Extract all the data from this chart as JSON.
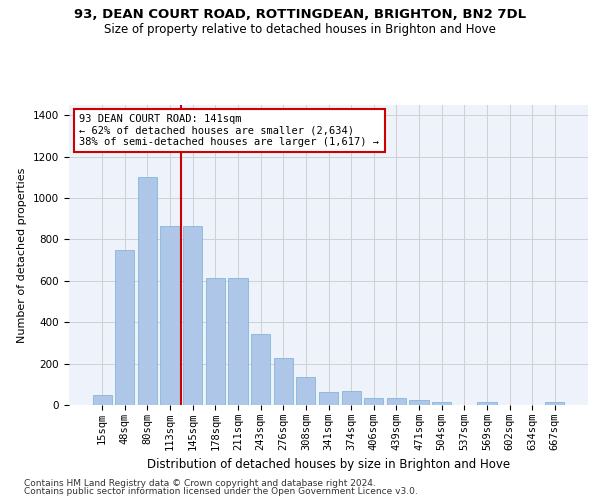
{
  "title1": "93, DEAN COURT ROAD, ROTTINGDEAN, BRIGHTON, BN2 7DL",
  "title2": "Size of property relative to detached houses in Brighton and Hove",
  "xlabel": "Distribution of detached houses by size in Brighton and Hove",
  "ylabel": "Number of detached properties",
  "footnote1": "Contains HM Land Registry data © Crown copyright and database right 2024.",
  "footnote2": "Contains public sector information licensed under the Open Government Licence v3.0.",
  "bar_labels": [
    "15sqm",
    "48sqm",
    "80sqm",
    "113sqm",
    "145sqm",
    "178sqm",
    "211sqm",
    "243sqm",
    "276sqm",
    "308sqm",
    "341sqm",
    "374sqm",
    "406sqm",
    "439sqm",
    "471sqm",
    "504sqm",
    "537sqm",
    "569sqm",
    "602sqm",
    "634sqm",
    "667sqm"
  ],
  "bar_values": [
    48,
    750,
    1100,
    865,
    865,
    615,
    615,
    345,
    225,
    135,
    65,
    70,
    32,
    32,
    22,
    15,
    0,
    13,
    0,
    0,
    13
  ],
  "bar_color": "#aec6e8",
  "bar_edge_color": "#7aafd4",
  "grid_color": "#d0d0d0",
  "background_color": "#eef2fa",
  "vline_x": 3.5,
  "vline_color": "#cc0000",
  "annotation_line1": "93 DEAN COURT ROAD: 141sqm",
  "annotation_line2": "← 62% of detached houses are smaller (2,634)",
  "annotation_line3": "38% of semi-detached houses are larger (1,617) →",
  "ylim": [
    0,
    1450
  ],
  "yticks": [
    0,
    200,
    400,
    600,
    800,
    1000,
    1200,
    1400
  ],
  "title1_fontsize": 9.5,
  "title2_fontsize": 8.5,
  "ylabel_fontsize": 8,
  "xlabel_fontsize": 8.5,
  "tick_fontsize": 7.5,
  "footnote_fontsize": 6.5
}
